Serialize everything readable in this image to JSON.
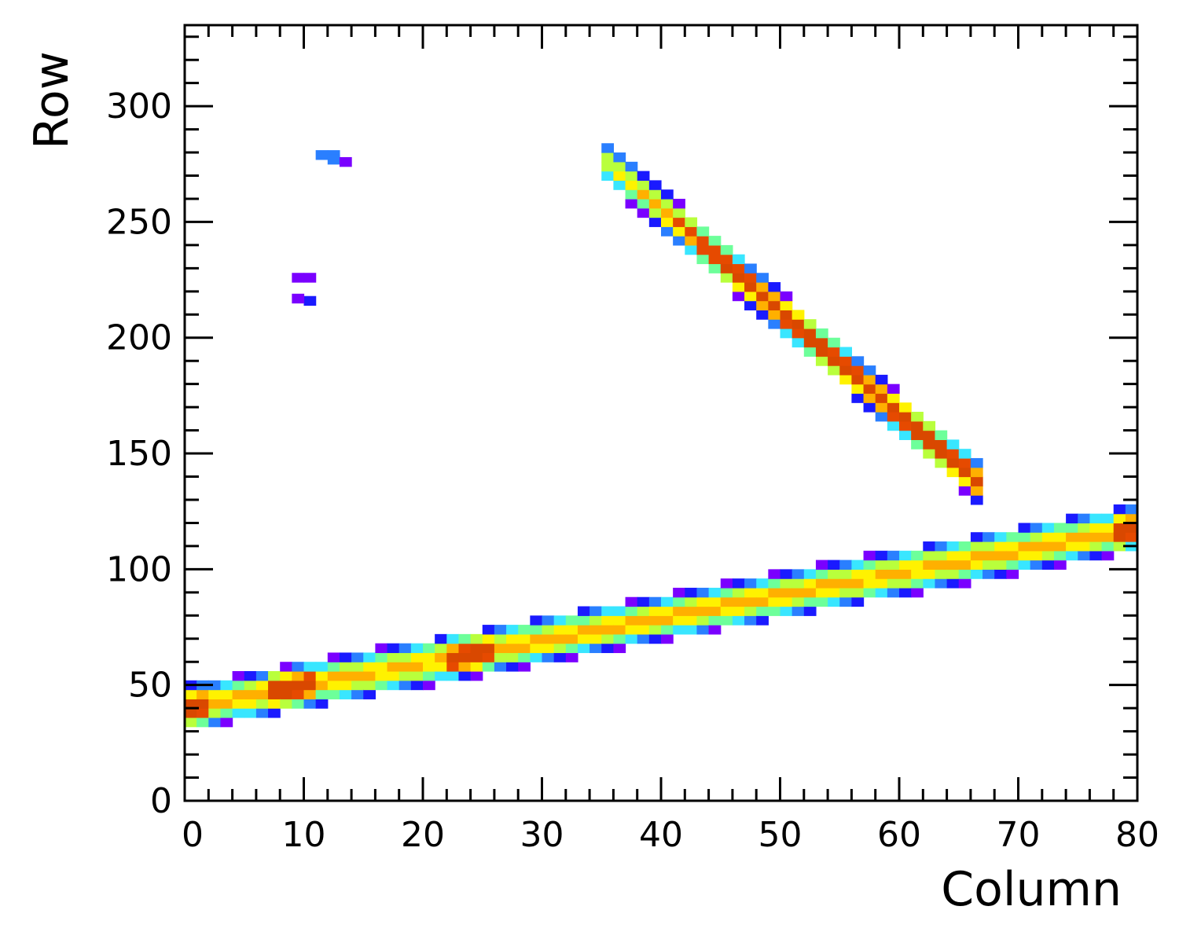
{
  "chart_data": {
    "type": "heatmap",
    "title": "",
    "xlabel": "Column",
    "ylabel": "Row",
    "xlim": [
      0,
      80
    ],
    "ylim": [
      0,
      335
    ],
    "x_ticks": [
      0,
      10,
      20,
      30,
      40,
      50,
      60,
      70,
      80
    ],
    "y_ticks": [
      0,
      50,
      100,
      150,
      200,
      250,
      300
    ],
    "x_minor_step": 2,
    "y_minor_step": 10,
    "grid": false,
    "colormap": [
      "#7a00ff",
      "#1a1aff",
      "#2a7fff",
      "#39e6ff",
      "#6dff9a",
      "#b9ff3c",
      "#fff200",
      "#ffb000",
      "#e64a00",
      "#d94800"
    ],
    "features": [
      {
        "name": "lower-track",
        "shape": "band",
        "start": [
          0,
          40
        ],
        "end": [
          80,
          118
        ],
        "half_width": 10,
        "peak_intensity": 0.72,
        "hot_spots": [
          [
            0,
            38
          ],
          [
            9,
            48
          ],
          [
            24,
            64
          ],
          [
            80,
            119
          ]
        ]
      },
      {
        "name": "upper-track",
        "shape": "band",
        "start": [
          35,
          278
        ],
        "end": [
          67,
          136
        ],
        "half_width": 9,
        "peak_intensity": 1.0,
        "fade_start": 0.2
      },
      {
        "name": "cluster-a",
        "shape": "blob",
        "cells": [
          [
            11,
            277,
            0.2
          ],
          [
            12,
            277,
            0.22
          ],
          [
            12,
            275,
            0.25
          ],
          [
            13,
            274,
            0.05
          ]
        ]
      },
      {
        "name": "cluster-b",
        "shape": "blob",
        "cells": [
          [
            9,
            224,
            0.04
          ],
          [
            10,
            224,
            0.04
          ],
          [
            10,
            214,
            0.15
          ],
          [
            9,
            215,
            0.04
          ]
        ]
      }
    ]
  }
}
